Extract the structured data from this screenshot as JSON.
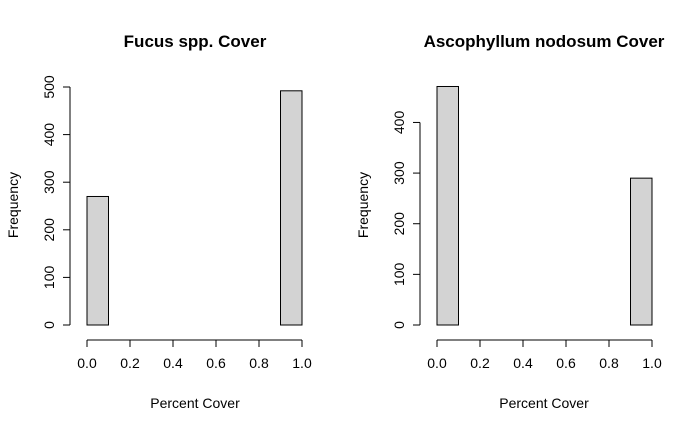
{
  "chart_data": [
    {
      "type": "bar",
      "title": "Fucus spp. Cover",
      "xlabel": "Percent Cover",
      "ylabel": "Frequency",
      "xlim": [
        0,
        1
      ],
      "ylim": [
        0,
        500
      ],
      "x_ticks": [
        {
          "value": 0.0,
          "label": "0.0"
        },
        {
          "value": 0.2,
          "label": "0.2"
        },
        {
          "value": 0.4,
          "label": "0.4"
        },
        {
          "value": 0.6,
          "label": "0.6"
        },
        {
          "value": 0.8,
          "label": "0.8"
        },
        {
          "value": 1.0,
          "label": "1.0"
        }
      ],
      "y_ticks": [
        {
          "value": 0,
          "label": "0"
        },
        {
          "value": 100,
          "label": "100"
        },
        {
          "value": 200,
          "label": "200"
        },
        {
          "value": 300,
          "label": "300"
        },
        {
          "value": 400,
          "label": "400"
        },
        {
          "value": 500,
          "label": "500"
        }
      ],
      "bins": [
        {
          "start": 0.0,
          "end": 0.1,
          "count": 270
        },
        {
          "start": 0.1,
          "end": 0.2,
          "count": 0
        },
        {
          "start": 0.2,
          "end": 0.3,
          "count": 0
        },
        {
          "start": 0.3,
          "end": 0.4,
          "count": 0
        },
        {
          "start": 0.4,
          "end": 0.5,
          "count": 0
        },
        {
          "start": 0.5,
          "end": 0.6,
          "count": 0
        },
        {
          "start": 0.6,
          "end": 0.7,
          "count": 0
        },
        {
          "start": 0.7,
          "end": 0.8,
          "count": 0
        },
        {
          "start": 0.8,
          "end": 0.9,
          "count": 0
        },
        {
          "start": 0.9,
          "end": 1.0,
          "count": 492
        }
      ]
    },
    {
      "type": "bar",
      "title": "Ascophyllum nodosum Cover",
      "xlabel": "Percent Cover",
      "ylabel": "Frequency",
      "xlim": [
        0,
        1
      ],
      "ylim": [
        0,
        470
      ],
      "x_ticks": [
        {
          "value": 0.0,
          "label": "0.0"
        },
        {
          "value": 0.2,
          "label": "0.2"
        },
        {
          "value": 0.4,
          "label": "0.4"
        },
        {
          "value": 0.6,
          "label": "0.6"
        },
        {
          "value": 0.8,
          "label": "0.8"
        },
        {
          "value": 1.0,
          "label": "1.0"
        }
      ],
      "y_ticks": [
        {
          "value": 0,
          "label": "0"
        },
        {
          "value": 100,
          "label": "100"
        },
        {
          "value": 200,
          "label": "200"
        },
        {
          "value": 300,
          "label": "300"
        },
        {
          "value": 400,
          "label": "400"
        }
      ],
      "bins": [
        {
          "start": 0.0,
          "end": 0.1,
          "count": 471
        },
        {
          "start": 0.1,
          "end": 0.2,
          "count": 0
        },
        {
          "start": 0.2,
          "end": 0.3,
          "count": 0
        },
        {
          "start": 0.3,
          "end": 0.4,
          "count": 0
        },
        {
          "start": 0.4,
          "end": 0.5,
          "count": 0
        },
        {
          "start": 0.5,
          "end": 0.6,
          "count": 0
        },
        {
          "start": 0.6,
          "end": 0.7,
          "count": 0
        },
        {
          "start": 0.7,
          "end": 0.8,
          "count": 0
        },
        {
          "start": 0.8,
          "end": 0.9,
          "count": 0
        },
        {
          "start": 0.9,
          "end": 1.0,
          "count": 290
        }
      ]
    }
  ]
}
